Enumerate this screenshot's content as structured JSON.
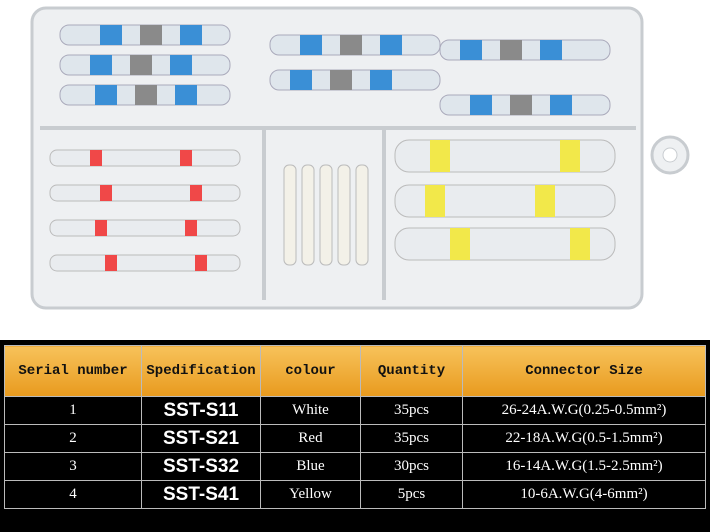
{
  "table": {
    "header": [
      "Serial number",
      "Spedification",
      "colour",
      "Quantity",
      "Connector Size"
    ],
    "rows": [
      [
        "1",
        "SST-S11",
        "White",
        "35pcs",
        "26-24A.W.G(0.25-0.5mm²)"
      ],
      [
        "2",
        "SST-S21",
        "Red",
        "35pcs",
        "22-18A.W.G(0.5-1.5mm²)"
      ],
      [
        "3",
        "SST-S32",
        "Blue",
        "30pcs",
        "16-14A.W.G(1.5-2.5mm²)"
      ],
      [
        "4",
        "SST-S41",
        "Yellow",
        "5pcs",
        "10-6A.W.G(4-6mm²)"
      ]
    ]
  }
}
